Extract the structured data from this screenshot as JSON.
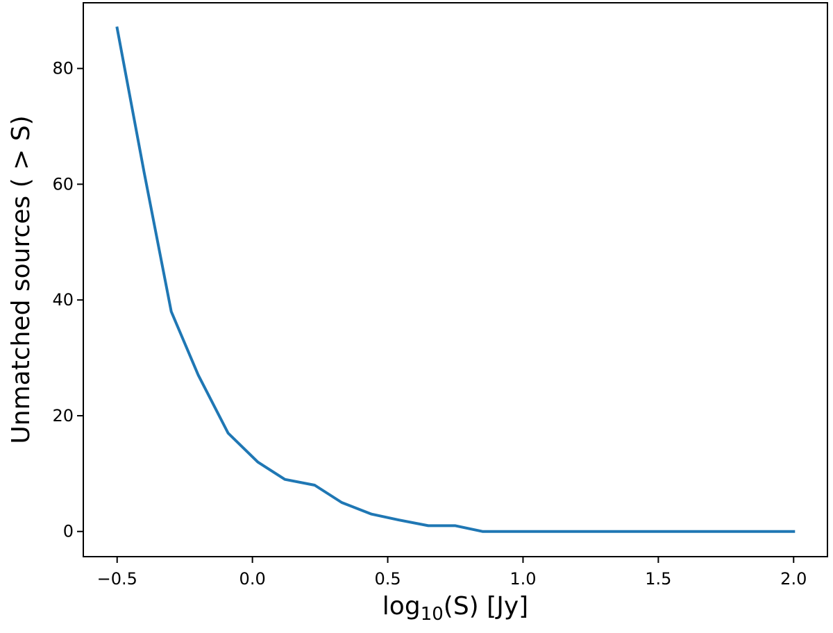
{
  "chart_data": {
    "type": "line",
    "title": "",
    "xlabel_main": "log",
    "xlabel_sub": "10",
    "xlabel_rest": "(S) [Jy]",
    "ylabel": "Unmatched sources ( > S)",
    "xlim": [
      -0.625,
      2.125
    ],
    "ylim": [
      -4.35,
      91.35
    ],
    "grid": false,
    "legend": "none",
    "x_ticks": [
      {
        "value": -0.5,
        "label": "−0.5"
      },
      {
        "value": 0.0,
        "label": "0.0"
      },
      {
        "value": 0.5,
        "label": "0.5"
      },
      {
        "value": 1.0,
        "label": "1.0"
      },
      {
        "value": 1.5,
        "label": "1.5"
      },
      {
        "value": 2.0,
        "label": "2.0"
      }
    ],
    "y_ticks": [
      {
        "value": 0,
        "label": "0"
      },
      {
        "value": 20,
        "label": "20"
      },
      {
        "value": 40,
        "label": "40"
      },
      {
        "value": 60,
        "label": "60"
      },
      {
        "value": 80,
        "label": "80"
      }
    ],
    "series": [
      {
        "color": "#1f77b4",
        "x": [
          -0.5,
          -0.4,
          -0.3,
          -0.2,
          -0.09,
          0.02,
          0.12,
          0.23,
          0.33,
          0.44,
          0.54,
          0.65,
          0.75,
          0.85,
          0.96,
          1.06,
          1.17,
          1.27,
          1.38,
          1.48,
          1.58,
          1.69,
          1.79,
          1.9,
          2.0
        ],
        "y": [
          87,
          62,
          38,
          27,
          17,
          12,
          9,
          8,
          5,
          3,
          2,
          1,
          1,
          0,
          0,
          0,
          0,
          0,
          0,
          0,
          0,
          0,
          0,
          0,
          0
        ]
      }
    ]
  }
}
